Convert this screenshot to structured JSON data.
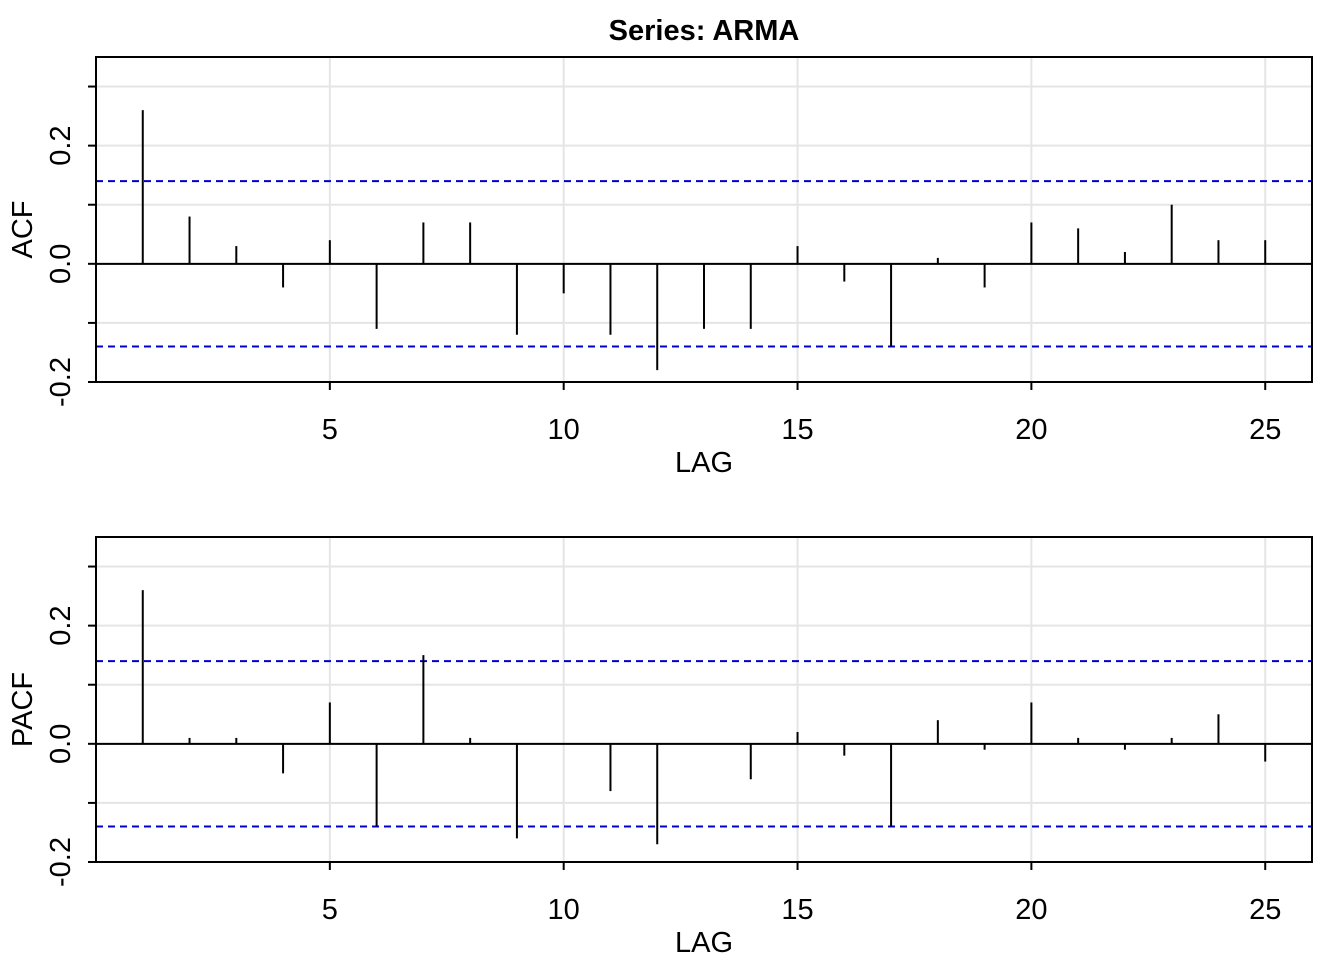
{
  "title": "Series:  ARMA",
  "colors": {
    "grid": "#e5e5e5",
    "bounds": "#0000cc",
    "spikes": "#000000",
    "frame": "#000000"
  },
  "chart_data": [
    {
      "type": "bar",
      "name": "acf-panel",
      "ylabel": "ACF",
      "xlabel": "LAG",
      "x": [
        1,
        2,
        3,
        4,
        5,
        6,
        7,
        8,
        9,
        10,
        11,
        12,
        13,
        14,
        15,
        16,
        17,
        18,
        19,
        20,
        21,
        22,
        23,
        24,
        25
      ],
      "values": [
        0.26,
        0.08,
        0.03,
        -0.04,
        0.04,
        -0.11,
        0.07,
        0.07,
        -0.12,
        -0.05,
        -0.12,
        -0.18,
        -0.11,
        -0.11,
        0.03,
        -0.03,
        -0.14,
        0.01,
        -0.04,
        0.07,
        0.06,
        0.02,
        0.1,
        0.04,
        0.04
      ],
      "confidence_bound": 0.14,
      "xlim": [
        0,
        26
      ],
      "ylim": [
        -0.2,
        0.35
      ],
      "xticks": [
        5,
        10,
        15,
        20,
        25
      ],
      "xtick_labels": [
        "5",
        "10",
        "15",
        "20",
        "25"
      ],
      "yticks": [
        -0.2,
        0.0,
        0.2
      ],
      "ytick_labels": [
        "-0.2",
        "0.0",
        "0.2"
      ],
      "y_minor_ticks": [
        -0.1,
        0.1,
        0.3
      ],
      "grid": true
    },
    {
      "type": "bar",
      "name": "pacf-panel",
      "ylabel": "PACF",
      "xlabel": "LAG",
      "x": [
        1,
        2,
        3,
        4,
        5,
        6,
        7,
        8,
        9,
        10,
        11,
        12,
        13,
        14,
        15,
        16,
        17,
        18,
        19,
        20,
        21,
        22,
        23,
        24,
        25
      ],
      "values": [
        0.26,
        0.01,
        0.01,
        -0.05,
        0.07,
        -0.14,
        0.15,
        0.01,
        -0.16,
        0.0,
        -0.08,
        -0.17,
        0.0,
        -0.06,
        0.02,
        -0.02,
        -0.14,
        0.04,
        -0.01,
        0.07,
        0.01,
        -0.01,
        0.01,
        0.05,
        -0.03
      ],
      "confidence_bound": 0.14,
      "xlim": [
        0,
        26
      ],
      "ylim": [
        -0.2,
        0.35
      ],
      "xticks": [
        5,
        10,
        15,
        20,
        25
      ],
      "xtick_labels": [
        "5",
        "10",
        "15",
        "20",
        "25"
      ],
      "yticks": [
        -0.2,
        0.0,
        0.2
      ],
      "ytick_labels": [
        "-0.2",
        "0.0",
        "0.2"
      ],
      "y_minor_ticks": [
        -0.1,
        0.1,
        0.3
      ],
      "grid": true
    }
  ]
}
